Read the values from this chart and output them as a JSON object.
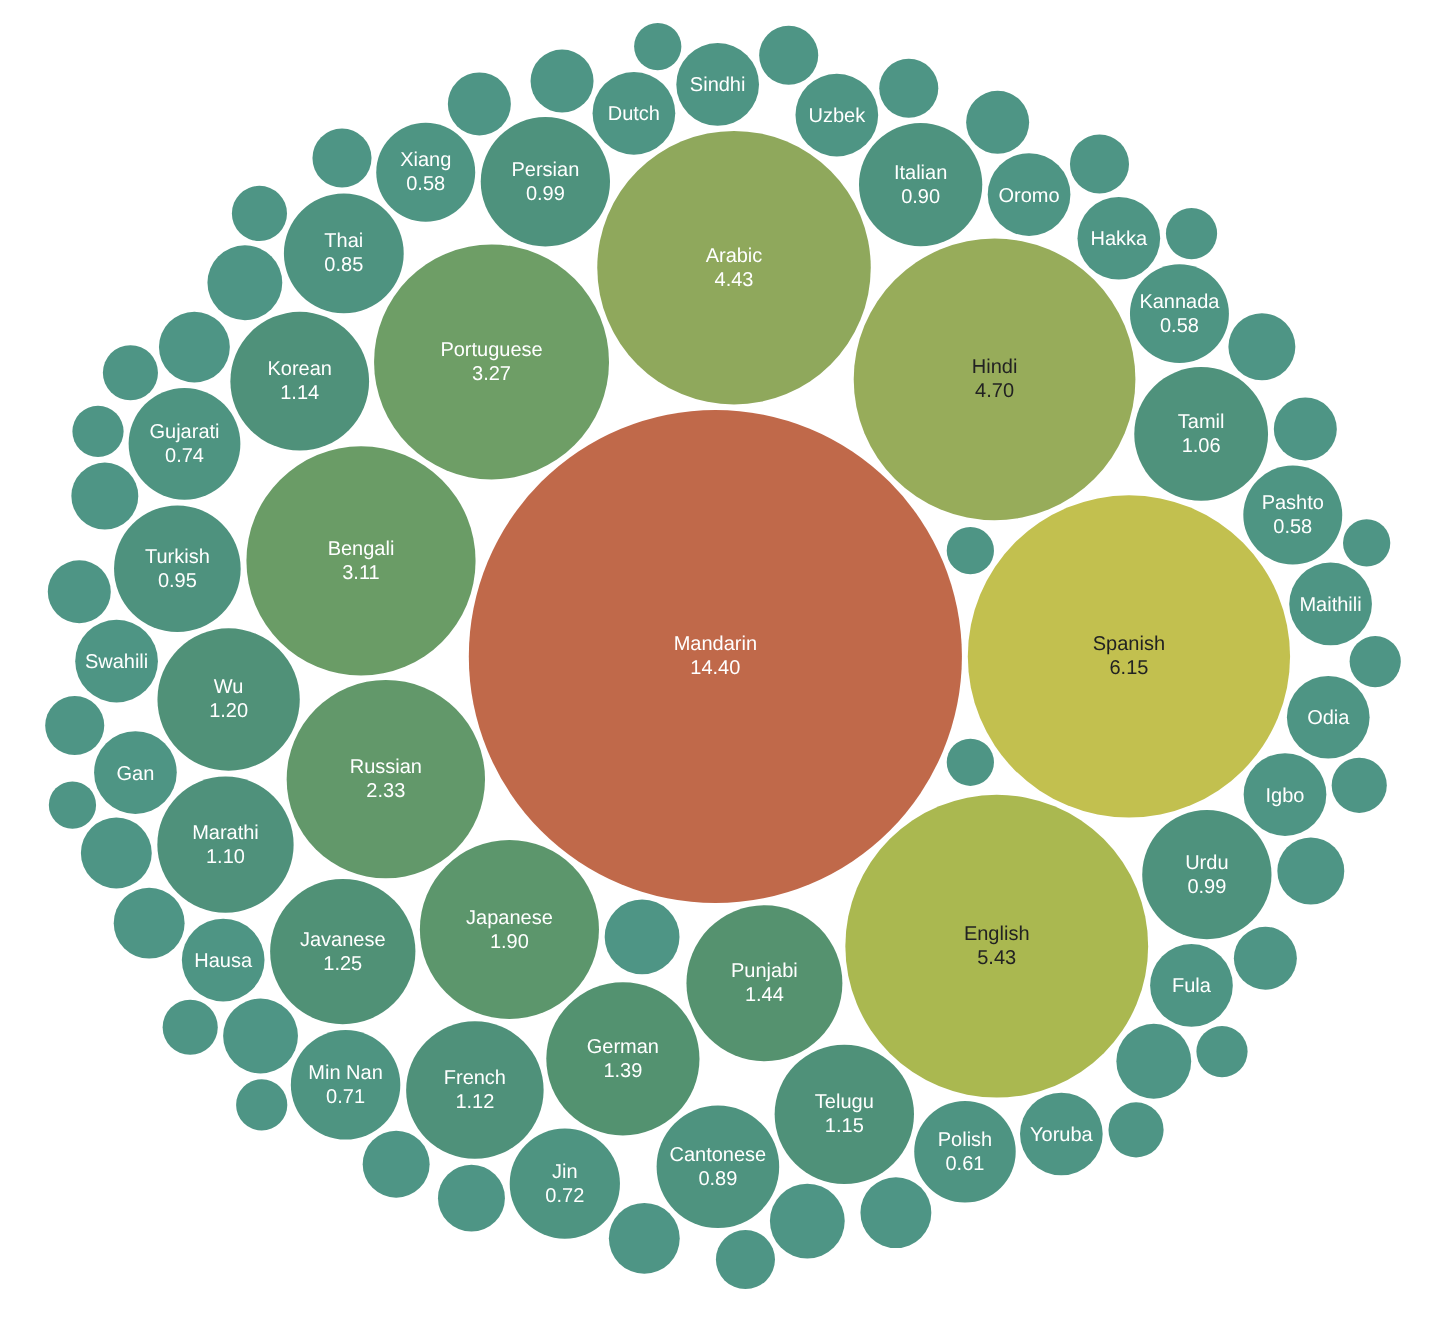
{
  "chart_data": {
    "type": "other",
    "categories": [
      "Mandarin",
      "Spanish",
      "English",
      "Hindi",
      "Arabic",
      "Portuguese",
      "Bengali",
      "Russian",
      "Japanese",
      "Punjabi",
      "German",
      "Javanese",
      "Wu",
      "Telugu",
      "Korean",
      "French",
      "Marathi",
      "Tamil",
      "Persian",
      "Urdu",
      "Turkish",
      "Italian",
      "Cantonese",
      "Thai",
      "Gujarati",
      "Jin",
      "Min Nan",
      "Polish",
      "Kannada",
      "Pashto",
      "Xiang",
      "Igbo",
      "Oromo",
      "Hausa",
      "Dutch",
      "Gan",
      "Fula",
      "Uzbek",
      "Swahili",
      "Hakka",
      "Odia",
      "Sindhi",
      "Maithili",
      "Yoruba",
      null,
      null,
      null,
      null,
      null,
      null,
      null,
      null,
      null,
      null,
      null,
      null,
      null,
      null,
      null,
      null,
      null,
      null,
      null,
      null,
      null,
      null,
      null,
      null,
      null,
      null,
      null,
      null,
      null,
      null,
      null,
      null,
      null,
      null,
      null,
      null,
      null,
      null,
      null,
      null,
      null,
      null
    ],
    "values": [
      14.4,
      6.15,
      5.43,
      4.7,
      4.43,
      3.27,
      3.11,
      2.33,
      1.9,
      1.44,
      1.39,
      1.25,
      1.2,
      1.15,
      1.14,
      1.12,
      1.1,
      1.06,
      0.99,
      0.99,
      0.95,
      0.9,
      0.89,
      0.85,
      0.74,
      0.72,
      0.71,
      0.61,
      0.58,
      0.58,
      0.58,
      null,
      null,
      null,
      null,
      null,
      null,
      null,
      null,
      null,
      null,
      null,
      null,
      null,
      null,
      null,
      null,
      null,
      null,
      null,
      null,
      null,
      null,
      null,
      null,
      null,
      null,
      null,
      null,
      null,
      null,
      null,
      null,
      null,
      null,
      null,
      null,
      null,
      null,
      null,
      null,
      null,
      null,
      null,
      null,
      null,
      null,
      null,
      null,
      null,
      null,
      null,
      null,
      null,
      null,
      null
    ],
    "value_labels": [
      "14.40",
      "6.15",
      "5.43",
      "4.70",
      "4.43",
      "3.27",
      "3.11",
      "2.33",
      "1.90",
      "1.44",
      "1.39",
      "1.25",
      "1.20",
      "1.15",
      "1.14",
      "1.12",
      "1.10",
      "1.06",
      "0.99",
      "0.99",
      "0.95",
      "0.90",
      "0.89",
      "0.85",
      "0.74",
      "0.72",
      "0.71",
      "0.61",
      "0.58",
      "0.58",
      "0.58",
      null,
      null,
      null,
      null,
      null,
      null,
      null,
      null,
      null,
      null,
      null,
      null,
      null,
      null,
      null,
      null,
      null,
      null,
      null,
      null,
      null,
      null,
      null,
      null,
      null,
      null,
      null,
      null,
      null,
      null,
      null,
      null,
      null,
      null,
      null,
      null,
      null,
      null,
      null,
      null,
      null,
      null,
      null,
      null,
      null,
      null,
      null,
      null,
      null,
      null,
      null,
      null,
      null,
      null,
      null
    ],
    "colors": [
      "#c0694a",
      "#c2c04f",
      "#aab850",
      "#97ac5a",
      "#8fa85c",
      "#6e9e66",
      "#6a9c66",
      "#62986a",
      "#5c966c",
      "#55926f",
      "#539270",
      "#509176",
      "#509178",
      "#4f9179",
      "#4f917a",
      "#4f917a",
      "#4f917b",
      "#4f927c",
      "#4e927d",
      "#4e927d",
      "#4e927e",
      "#4e937f",
      "#4e937f",
      "#4e9380",
      "#4e9481",
      "#4e9481",
      "#4e9481",
      "#4e9482",
      "#4e9583",
      "#4e9583",
      "#4e9583",
      "#4e9584",
      "#4e9584",
      "#4e9584",
      "#4e9584",
      "#4e9584",
      "#4e9584",
      "#4e9584",
      "#4e9584",
      "#4e9584",
      "#4e9584",
      "#4e9584",
      "#4e9584",
      "#4e9584",
      "#4e9585",
      "#4e9585",
      "#4e9585",
      "#4e9585",
      "#4e9585",
      "#4e9585",
      "#4e9585",
      "#4e9585",
      "#4e9585",
      "#4e9585",
      "#4e9585",
      "#4e9585",
      "#4e9585",
      "#4e9585",
      "#4e9585",
      "#4e9585",
      "#4e9585",
      "#4e9585",
      "#4e9585",
      "#4e9585",
      "#4e9585",
      "#4e9585",
      "#4e9585",
      "#4e9585",
      "#4e9585",
      "#4e9585",
      "#4e9585",
      "#4e9585",
      "#4e9585",
      "#4e9585",
      "#4e9585",
      "#4e9585",
      "#4e9585",
      "#4e9585",
      "#4e9585",
      "#4e9585",
      "#4e9585",
      "#4e9585",
      "#4e9585",
      "#4e9585",
      "#4e9585",
      "#4e9585"
    ]
  }
}
